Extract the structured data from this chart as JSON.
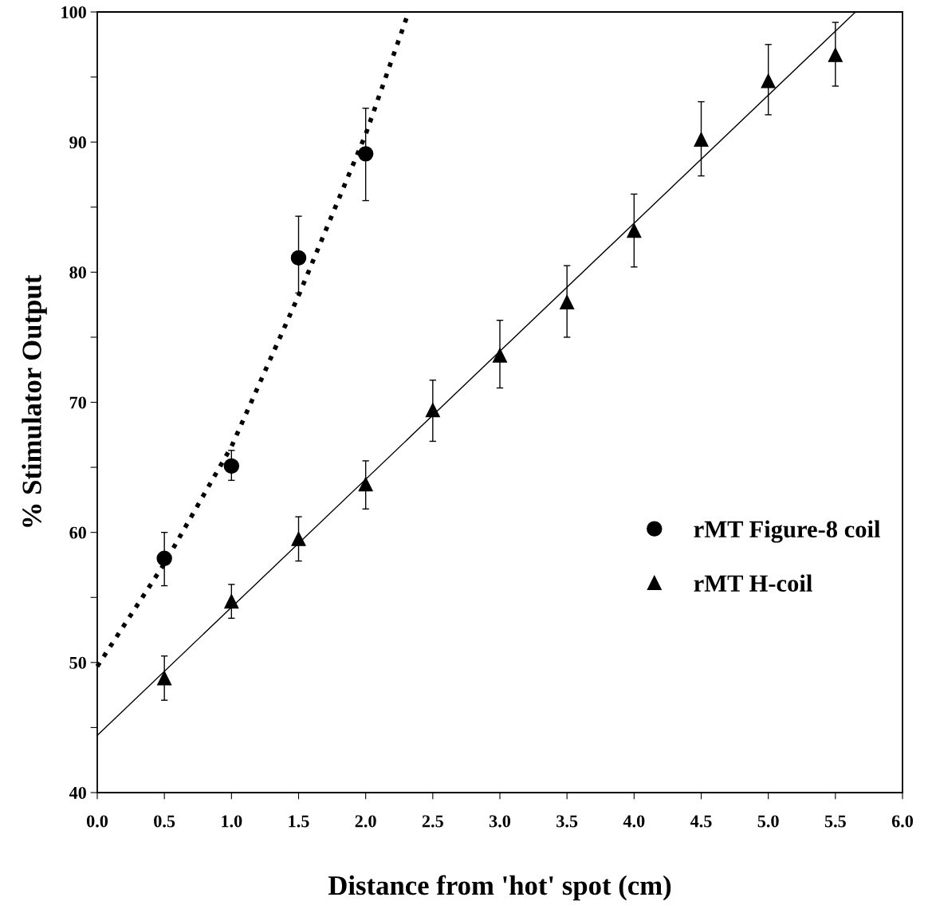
{
  "chart_data": {
    "type": "scatter",
    "xlabel": "Distance from 'hot' spot (cm)",
    "ylabel": "% Stimulator Output",
    "xlim": [
      0,
      6
    ],
    "ylim": [
      40,
      100
    ],
    "xticks": [
      {
        "value": 0,
        "label": "0.0"
      },
      0.5,
      {
        "value": 1,
        "label": "1.0"
      },
      1.5,
      {
        "value": 2,
        "label": "2.0"
      },
      2.5,
      {
        "value": 3,
        "label": "3.0"
      },
      3.5,
      {
        "value": 4,
        "label": "4.0"
      },
      4.5,
      {
        "value": 5,
        "label": "5.0"
      },
      5.5,
      {
        "value": 6,
        "label": "6.0"
      }
    ],
    "yticks": [
      40,
      {
        "value": 45,
        "label": null
      },
      50,
      {
        "value": 55,
        "label": null
      },
      60,
      {
        "value": 65,
        "label": null
      },
      70,
      {
        "value": 75,
        "label": null
      },
      80,
      {
        "value": 85,
        "label": null
      },
      90,
      {
        "value": 95,
        "label": null
      },
      100
    ],
    "grid": false,
    "legend": "right",
    "series": [
      {
        "name": "rMT Figure-8 coil",
        "marker": "circle",
        "color": "#000000",
        "x": [
          0.5,
          1.0,
          1.5,
          2.0
        ],
        "values": [
          58.0,
          65.1,
          81.1,
          89.1
        ],
        "errors": [
          [
            55.9,
            60.0
          ],
          [
            64.0,
            66.3
          ],
          [
            78.4,
            84.3
          ],
          [
            85.5,
            92.6
          ]
        ]
      },
      {
        "name": "rMT H-coil",
        "marker": "triangle",
        "color": "#000000",
        "x": [
          0.5,
          1.0,
          1.5,
          2.0,
          2.5,
          3.0,
          3.5,
          4.0,
          4.5,
          5.0,
          5.5
        ],
        "values": [
          48.8,
          54.7,
          59.5,
          63.7,
          69.4,
          73.6,
          77.7,
          83.2,
          90.2,
          94.7,
          96.7
        ],
        "errors": [
          [
            47.1,
            50.5
          ],
          [
            53.4,
            56.0
          ],
          [
            57.8,
            61.2
          ],
          [
            61.8,
            65.5
          ],
          [
            67.0,
            71.7
          ],
          [
            71.1,
            76.3
          ],
          [
            75.0,
            80.5
          ],
          [
            80.4,
            86.0
          ],
          [
            87.4,
            93.1
          ],
          [
            92.1,
            97.5
          ],
          [
            94.3,
            99.2
          ]
        ]
      },
      {
        "type": "line",
        "line_style": "dotted",
        "color": "#000000",
        "x": [
          0,
          0.5,
          1.0,
          1.5,
          2.0,
          2.32
        ],
        "values": [
          49.7,
          57.6,
          66.6,
          78.2,
          90.6,
          100
        ]
      },
      {
        "type": "line",
        "line_style": "solid",
        "color": "#000000",
        "x": [
          0,
          5.65
        ],
        "values": [
          44.4,
          100
        ]
      }
    ]
  }
}
